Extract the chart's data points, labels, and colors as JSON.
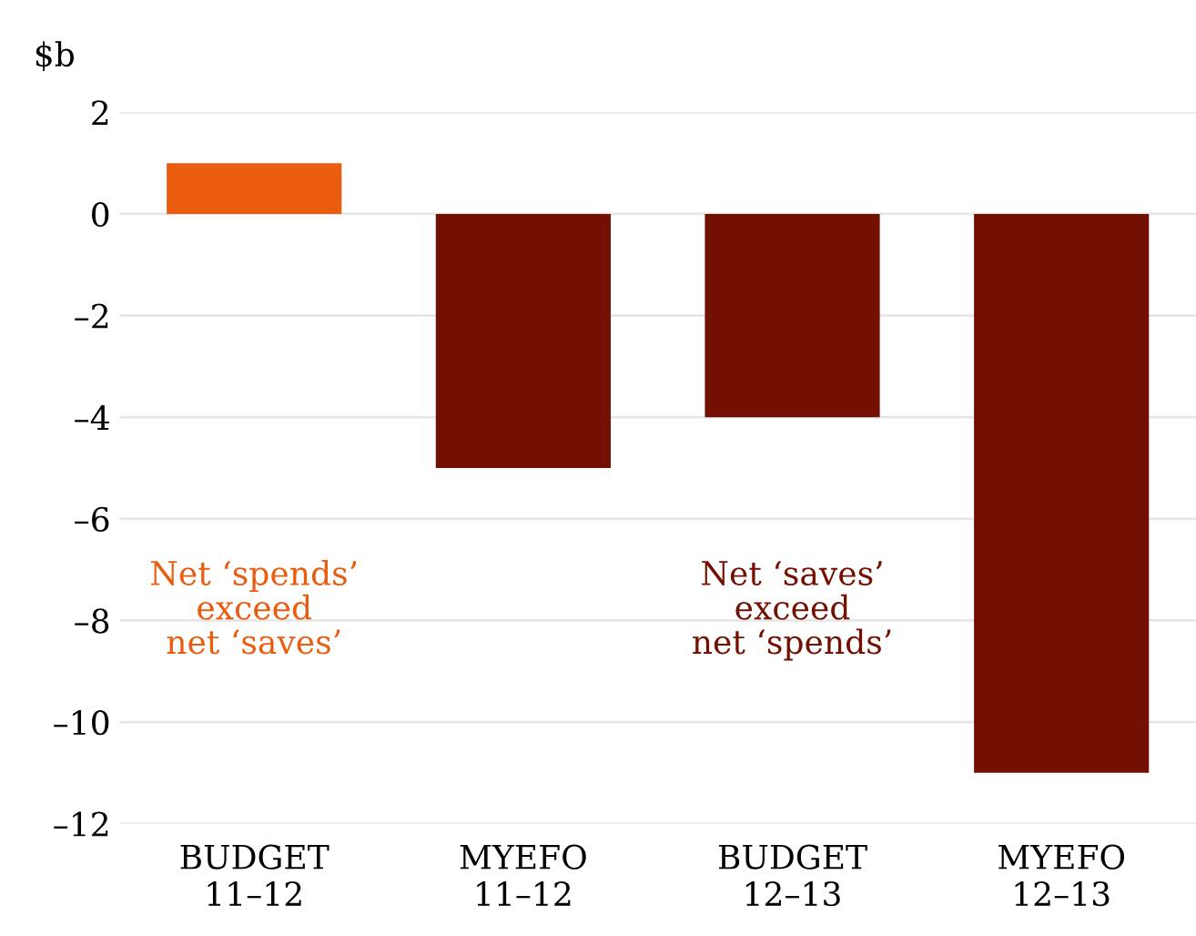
{
  "chart_data": {
    "type": "bar",
    "ylabel": "$b",
    "categories": [
      "BUDGET\n11–12",
      "MYEFO\n11–12",
      "BUDGET\n12–13",
      "MYEFO\n12–13"
    ],
    "values": [
      1.0,
      -5.0,
      -4.0,
      -11.0
    ],
    "colors": [
      "#ea5c0e",
      "#731001",
      "#731001",
      "#731001"
    ],
    "ylim": [
      -12,
      2
    ],
    "yticks": [
      {
        "value": 2,
        "label": "2"
      },
      {
        "value": 0,
        "label": "0"
      },
      {
        "value": -2,
        "label": "–2"
      },
      {
        "value": -4,
        "label": "–4"
      },
      {
        "value": -6,
        "label": "–6"
      },
      {
        "value": -8,
        "label": "–8"
      },
      {
        "value": -10,
        "label": "–10"
      },
      {
        "value": -12,
        "label": "–12"
      }
    ],
    "grid": true,
    "annotations": [
      "Net ‘spends’\nexceed\nnet ‘saves’",
      "Net ‘saves’\nexceed\nnet ‘spends’"
    ]
  }
}
